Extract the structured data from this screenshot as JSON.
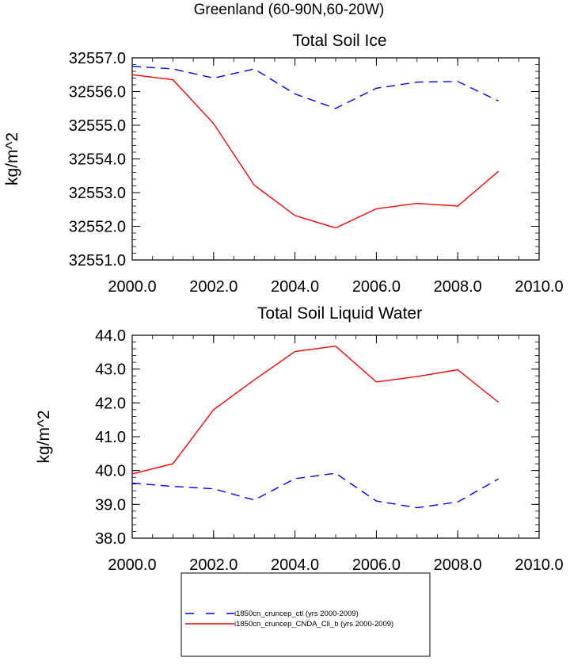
{
  "page": {
    "title": "Greenland (60-90N,60-20W)"
  },
  "chart_data": [
    {
      "type": "line",
      "title": "Total Soil Ice",
      "xlabel": "",
      "ylabel": "kg/m^2",
      "xlim": [
        2000,
        2010
      ],
      "ylim": [
        32551.0,
        32557.0
      ],
      "x_ticks": [
        "2000.0",
        "2002.0",
        "2004.0",
        "2006.0",
        "2008.0",
        "2010.0"
      ],
      "y_ticks": [
        "32551.0",
        "32552.0",
        "32553.0",
        "32554.0",
        "32555.0",
        "32556.0",
        "32557.0"
      ],
      "x": [
        2000,
        2001,
        2002,
        2003,
        2004,
        2005,
        2006,
        2007,
        2008,
        2009
      ],
      "series": [
        {
          "name": "i1850cn_cruncep_ctl (yrs 2000-2009)",
          "color": "#0000ff",
          "dash": "dashed",
          "values": [
            32556.75,
            32556.67,
            32556.4,
            32556.67,
            32555.93,
            32555.5,
            32556.1,
            32556.28,
            32556.3,
            32555.72
          ]
        },
        {
          "name": "i1850cn_cruncep_CNDA_Cli_b (yrs 2000-2009)",
          "color": "#ff0000",
          "dash": "solid",
          "values": [
            32556.5,
            32556.35,
            32555.05,
            32553.22,
            32552.32,
            32551.95,
            32552.52,
            32552.68,
            32552.6,
            32553.63
          ]
        }
      ]
    },
    {
      "type": "line",
      "title": "Total Soil Liquid Water",
      "xlabel": "",
      "ylabel": "kg/m^2",
      "xlim": [
        2000,
        2010
      ],
      "ylim": [
        38.0,
        44.0
      ],
      "x_ticks": [
        "2000.0",
        "2002.0",
        "2004.0",
        "2006.0",
        "2008.0",
        "2010.0"
      ],
      "y_ticks": [
        "38.0",
        "39.0",
        "40.0",
        "41.0",
        "42.0",
        "43.0",
        "44.0"
      ],
      "x": [
        2000,
        2001,
        2002,
        2003,
        2004,
        2005,
        2006,
        2007,
        2008,
        2009
      ],
      "series": [
        {
          "name": "i1850cn_cruncep_ctl (yrs 2000-2009)",
          "color": "#0000ff",
          "dash": "dashed",
          "values": [
            39.63,
            39.53,
            39.46,
            39.13,
            39.76,
            39.92,
            39.1,
            38.9,
            39.07,
            39.75
          ]
        },
        {
          "name": "i1850cn_cruncep_CNDA_Cli_b (yrs 2000-2009)",
          "color": "#ff0000",
          "dash": "solid",
          "values": [
            39.9,
            40.2,
            41.8,
            42.68,
            43.52,
            43.68,
            42.62,
            42.78,
            42.98,
            42.02
          ]
        }
      ]
    }
  ],
  "legend": {
    "items": [
      {
        "label": "i1850cn_cruncep_ctl (yrs 2000-2009)",
        "color": "#0000ff",
        "dash": "dashed"
      },
      {
        "label": "i1850cn_cruncep_CNDA_Cli_b (yrs 2000-2009)",
        "color": "#ff0000",
        "dash": "solid"
      }
    ]
  }
}
